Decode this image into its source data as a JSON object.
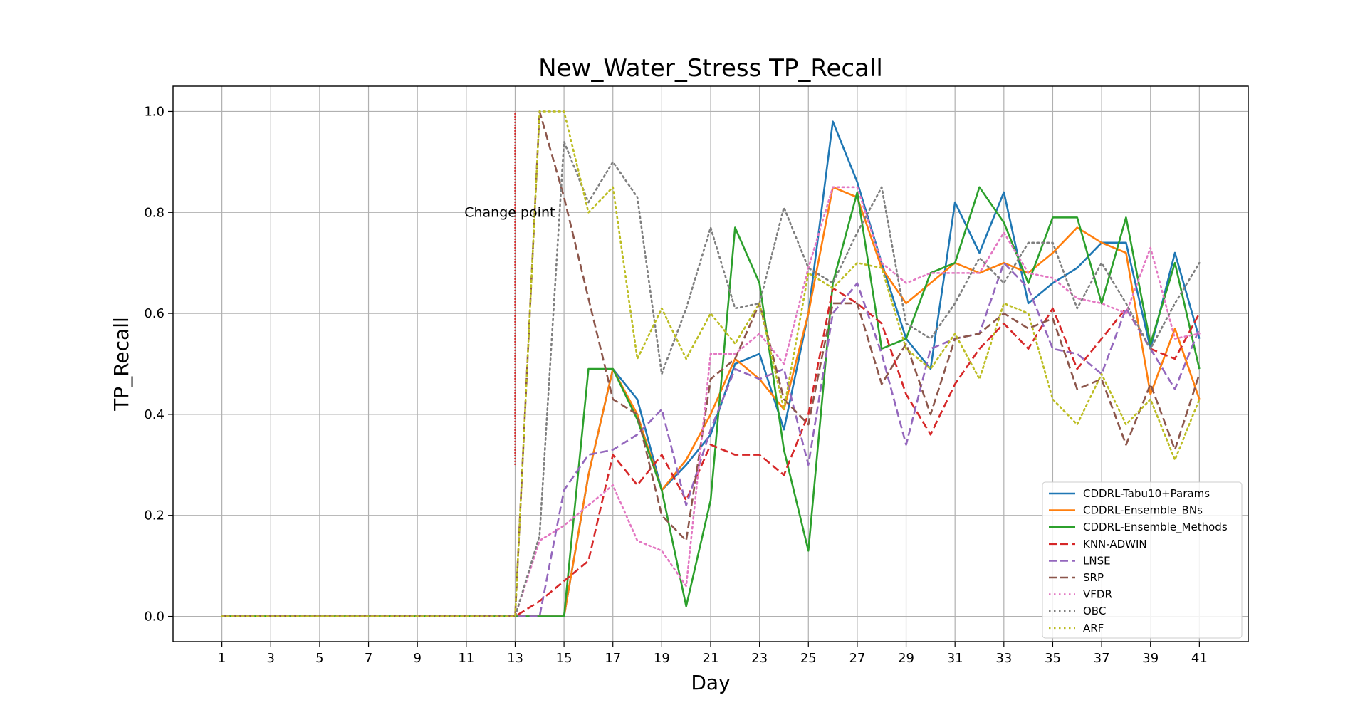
{
  "chart_data": {
    "type": "line",
    "title": "New_Water_Stress TP_Recall",
    "xlabel": "Day",
    "ylabel": "TP_Recall",
    "xlim": [
      -1,
      43
    ],
    "ylim": [
      -0.05,
      1.05
    ],
    "xticks": [
      1,
      3,
      5,
      7,
      9,
      11,
      13,
      15,
      17,
      19,
      21,
      23,
      25,
      27,
      29,
      31,
      33,
      35,
      37,
      39,
      41
    ],
    "yticks": [
      "0.0",
      "0.2",
      "0.4",
      "0.6",
      "0.8",
      "1.0"
    ],
    "grid": true,
    "legend_position": "lower-right",
    "x": [
      1,
      2,
      3,
      4,
      5,
      6,
      7,
      8,
      9,
      10,
      11,
      12,
      13,
      14,
      15,
      16,
      17,
      18,
      19,
      20,
      21,
      22,
      23,
      24,
      25,
      26,
      27,
      28,
      29,
      30,
      31,
      32,
      33,
      34,
      35,
      36,
      37,
      38,
      39,
      40,
      41
    ],
    "change_point": {
      "x": 13,
      "y_range": [
        0.3,
        1.0
      ],
      "label": "Change point",
      "color": "#d62728"
    },
    "series": [
      {
        "name": "CDDRL-Tabu10+Params",
        "color": "#1f77b4",
        "dash": "solid",
        "values": [
          0,
          0,
          0,
          0,
          0,
          0,
          0,
          0,
          0,
          0,
          0,
          0,
          0,
          0,
          0,
          0.28,
          0.49,
          0.43,
          0.25,
          0.3,
          0.36,
          0.5,
          0.52,
          0.37,
          0.6,
          0.98,
          0.86,
          0.7,
          0.55,
          0.49,
          0.82,
          0.72,
          0.84,
          0.62,
          0.66,
          0.69,
          0.74,
          0.74,
          0.53,
          0.72,
          0.55
        ]
      },
      {
        "name": "CDDRL-Ensemble_BNs",
        "color": "#ff7f0e",
        "dash": "solid",
        "values": [
          0,
          0,
          0,
          0,
          0,
          0,
          0,
          0,
          0,
          0,
          0,
          0,
          0,
          0,
          0,
          0.28,
          0.49,
          0.4,
          0.25,
          0.31,
          0.4,
          0.51,
          0.47,
          0.41,
          0.6,
          0.85,
          0.83,
          0.69,
          0.62,
          0.66,
          0.7,
          0.68,
          0.7,
          0.68,
          0.72,
          0.77,
          0.74,
          0.72,
          0.44,
          0.57,
          0.43
        ]
      },
      {
        "name": "CDDRL-Ensemble_Methods",
        "color": "#2ca02c",
        "dash": "solid",
        "values": [
          0,
          0,
          0,
          0,
          0,
          0,
          0,
          0,
          0,
          0,
          0,
          0,
          0,
          0,
          0,
          0.49,
          0.49,
          0.39,
          0.25,
          0.02,
          0.23,
          0.77,
          0.66,
          0.33,
          0.13,
          0.66,
          0.84,
          0.53,
          0.55,
          0.68,
          0.7,
          0.85,
          0.78,
          0.66,
          0.79,
          0.79,
          0.62,
          0.79,
          0.54,
          0.7,
          0.49
        ]
      },
      {
        "name": "KNN-ADWIN",
        "color": "#d62728",
        "dash": "dashed",
        "values": [
          0,
          0,
          0,
          0,
          0,
          0,
          0,
          0,
          0,
          0,
          0,
          0,
          0,
          0.03,
          0.07,
          0.11,
          0.32,
          0.26,
          0.32,
          0.23,
          0.34,
          0.32,
          0.32,
          0.28,
          0.4,
          0.65,
          0.62,
          0.58,
          0.44,
          0.36,
          0.46,
          0.53,
          0.58,
          0.53,
          0.61,
          0.49,
          0.55,
          0.61,
          0.53,
          0.51,
          0.6
        ]
      },
      {
        "name": "LNSE",
        "color": "#9467bd",
        "dash": "dashed",
        "values": [
          0,
          0,
          0,
          0,
          0,
          0,
          0,
          0,
          0,
          0,
          0,
          0,
          0,
          0,
          0.25,
          0.32,
          0.33,
          0.36,
          0.41,
          0.22,
          0.37,
          0.49,
          0.47,
          0.49,
          0.3,
          0.6,
          0.66,
          0.52,
          0.34,
          0.53,
          0.55,
          0.56,
          0.7,
          0.65,
          0.53,
          0.52,
          0.48,
          0.61,
          0.53,
          0.45,
          0.57
        ]
      },
      {
        "name": "SRP",
        "color": "#8c564b",
        "dash": "dashed",
        "values": [
          0,
          0,
          0,
          0,
          0,
          0,
          0,
          0,
          0,
          0,
          0,
          0,
          0,
          1.0,
          0.83,
          0.63,
          0.43,
          0.4,
          0.2,
          0.15,
          0.47,
          0.51,
          0.62,
          0.43,
          0.38,
          0.62,
          0.62,
          0.46,
          0.54,
          0.4,
          0.55,
          0.56,
          0.6,
          0.57,
          0.59,
          0.45,
          0.47,
          0.34,
          0.46,
          0.33,
          0.48
        ]
      },
      {
        "name": "VFDR",
        "color": "#e377c2",
        "dash": "dotted",
        "values": [
          0,
          0,
          0,
          0,
          0,
          0,
          0,
          0,
          0,
          0,
          0,
          0,
          0,
          0.15,
          0.18,
          0.22,
          0.26,
          0.15,
          0.13,
          0.06,
          0.52,
          0.52,
          0.56,
          0.5,
          0.69,
          0.85,
          0.85,
          0.7,
          0.66,
          0.68,
          0.68,
          0.68,
          0.76,
          0.68,
          0.67,
          0.63,
          0.62,
          0.6,
          0.73,
          0.55,
          0.56
        ]
      },
      {
        "name": "OBC",
        "color": "#7f7f7f",
        "dash": "dotted",
        "values": [
          0,
          0,
          0,
          0,
          0,
          0,
          0,
          0,
          0,
          0,
          0,
          0,
          0,
          0.16,
          0.94,
          0.82,
          0.9,
          0.83,
          0.48,
          0.61,
          0.77,
          0.61,
          0.62,
          0.81,
          0.69,
          0.66,
          0.76,
          0.85,
          0.58,
          0.55,
          0.62,
          0.71,
          0.66,
          0.74,
          0.74,
          0.61,
          0.7,
          0.62,
          0.53,
          0.62,
          0.7
        ]
      },
      {
        "name": "ARF",
        "color": "#bcbd22",
        "dash": "dotted",
        "values": [
          0,
          0,
          0,
          0,
          0,
          0,
          0,
          0,
          0,
          0,
          0,
          0,
          0,
          1.0,
          1.0,
          0.8,
          0.85,
          0.51,
          0.61,
          0.51,
          0.6,
          0.54,
          0.62,
          0.41,
          0.68,
          0.65,
          0.7,
          0.69,
          0.53,
          0.49,
          0.56,
          0.47,
          0.62,
          0.6,
          0.43,
          0.38,
          0.48,
          0.38,
          0.43,
          0.31,
          0.43
        ]
      }
    ]
  }
}
